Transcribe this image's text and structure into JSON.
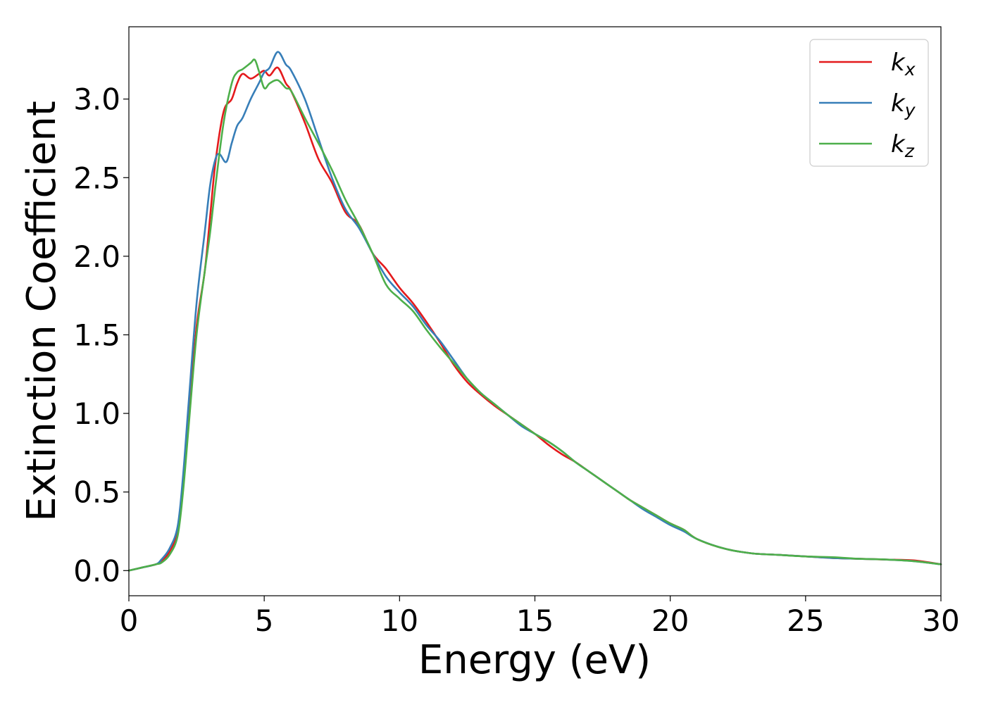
{
  "chart_data": {
    "type": "line",
    "title": "",
    "xlabel": "Energy (eV)",
    "ylabel": "Extinction Coefficient",
    "xlim": [
      0,
      30
    ],
    "ylim": [
      -0.16,
      3.46
    ],
    "xticks": [
      0,
      5,
      10,
      15,
      20,
      25,
      30
    ],
    "xtick_labels": [
      "0",
      "5",
      "10",
      "15",
      "20",
      "25",
      "30"
    ],
    "yticks": [
      0.0,
      0.5,
      1.0,
      1.5,
      2.0,
      2.5,
      3.0
    ],
    "ytick_labels": [
      "0.0",
      "0.5",
      "1.0",
      "1.5",
      "2.0",
      "2.5",
      "3.0"
    ],
    "grid": false,
    "legend_position": "top-right",
    "series": [
      {
        "name": "kx",
        "name_base": "k",
        "name_sub": "x",
        "color": "#e41a1c",
        "x": [
          0,
          0.5,
          1.0,
          1.2,
          1.5,
          1.8,
          2.0,
          2.2,
          2.5,
          2.8,
          3.0,
          3.2,
          3.5,
          3.8,
          4.0,
          4.2,
          4.5,
          4.8,
          5.0,
          5.2,
          5.5,
          5.8,
          6.0,
          6.5,
          7.0,
          7.5,
          8.0,
          8.5,
          9.0,
          9.5,
          10.0,
          10.5,
          11.0,
          11.5,
          12.0,
          12.5,
          13.0,
          13.5,
          14.0,
          14.5,
          15.0,
          15.5,
          16.0,
          16.5,
          17.0,
          17.5,
          18.0,
          18.5,
          19.0,
          19.5,
          20.0,
          20.5,
          21.0,
          22.0,
          23.0,
          24.0,
          25.0,
          26.0,
          27.0,
          28.0,
          29.0,
          30.0
        ],
        "y": [
          0.0,
          0.02,
          0.04,
          0.06,
          0.12,
          0.25,
          0.55,
          0.95,
          1.55,
          1.9,
          2.25,
          2.6,
          2.92,
          3.0,
          3.1,
          3.16,
          3.13,
          3.16,
          3.18,
          3.15,
          3.2,
          3.1,
          3.05,
          2.85,
          2.62,
          2.47,
          2.28,
          2.2,
          2.02,
          1.92,
          1.8,
          1.7,
          1.58,
          1.45,
          1.31,
          1.2,
          1.12,
          1.05,
          0.99,
          0.93,
          0.87,
          0.8,
          0.74,
          0.69,
          0.63,
          0.57,
          0.51,
          0.45,
          0.4,
          0.35,
          0.3,
          0.26,
          0.2,
          0.14,
          0.11,
          0.1,
          0.09,
          0.08,
          0.075,
          0.07,
          0.065,
          0.04
        ]
      },
      {
        "name": "ky",
        "name_base": "k",
        "name_sub": "y",
        "color": "#377eb8",
        "x": [
          0,
          0.5,
          1.0,
          1.2,
          1.5,
          1.8,
          2.0,
          2.2,
          2.5,
          2.8,
          3.0,
          3.2,
          3.35,
          3.6,
          3.8,
          4.0,
          4.2,
          4.5,
          4.8,
          5.0,
          5.2,
          5.5,
          5.8,
          6.0,
          6.5,
          7.0,
          7.5,
          8.0,
          8.5,
          9.0,
          9.5,
          10.0,
          10.5,
          11.0,
          11.5,
          12.0,
          12.5,
          13.0,
          13.5,
          14.0,
          14.5,
          15.0,
          15.5,
          16.0,
          16.5,
          17.0,
          17.5,
          18.0,
          18.5,
          19.0,
          19.5,
          20.0,
          20.5,
          21.0,
          22.0,
          23.0,
          24.0,
          25.0,
          26.0,
          27.0,
          28.0,
          29.0,
          30.0
        ],
        "y": [
          0.0,
          0.02,
          0.04,
          0.07,
          0.14,
          0.28,
          0.6,
          1.05,
          1.7,
          2.15,
          2.45,
          2.62,
          2.65,
          2.6,
          2.72,
          2.83,
          2.88,
          3.0,
          3.1,
          3.17,
          3.2,
          3.3,
          3.22,
          3.18,
          3.0,
          2.75,
          2.5,
          2.3,
          2.18,
          2.02,
          1.87,
          1.77,
          1.68,
          1.56,
          1.46,
          1.34,
          1.22,
          1.13,
          1.06,
          0.99,
          0.92,
          0.87,
          0.82,
          0.76,
          0.69,
          0.63,
          0.57,
          0.51,
          0.45,
          0.39,
          0.34,
          0.29,
          0.25,
          0.2,
          0.14,
          0.11,
          0.1,
          0.09,
          0.08,
          0.075,
          0.07,
          0.06,
          0.04
        ]
      },
      {
        "name": "kz",
        "name_base": "k",
        "name_sub": "z",
        "color": "#4daf4a",
        "x": [
          0,
          0.5,
          1.0,
          1.2,
          1.5,
          1.8,
          2.0,
          2.2,
          2.5,
          2.8,
          3.0,
          3.2,
          3.5,
          3.8,
          4.0,
          4.2,
          4.5,
          4.65,
          4.8,
          5.0,
          5.2,
          5.5,
          5.8,
          6.0,
          6.5,
          7.0,
          7.5,
          8.0,
          8.5,
          9.0,
          9.5,
          10.0,
          10.5,
          11.0,
          11.5,
          12.0,
          12.5,
          13.0,
          13.5,
          14.0,
          14.5,
          15.0,
          15.5,
          16.0,
          16.5,
          17.0,
          17.5,
          18.0,
          18.5,
          19.0,
          19.5,
          20.0,
          20.5,
          21.0,
          22.0,
          23.0,
          24.0,
          25.0,
          26.0,
          27.0,
          28.0,
          29.0,
          30.0
        ],
        "y": [
          0.0,
          0.02,
          0.04,
          0.05,
          0.1,
          0.22,
          0.5,
          0.9,
          1.5,
          1.9,
          2.15,
          2.45,
          2.85,
          3.1,
          3.17,
          3.19,
          3.23,
          3.25,
          3.18,
          3.07,
          3.1,
          3.12,
          3.07,
          3.05,
          2.88,
          2.72,
          2.55,
          2.36,
          2.2,
          2.02,
          1.82,
          1.73,
          1.65,
          1.53,
          1.42,
          1.32,
          1.22,
          1.13,
          1.06,
          0.99,
          0.93,
          0.87,
          0.82,
          0.76,
          0.69,
          0.63,
          0.57,
          0.51,
          0.45,
          0.4,
          0.35,
          0.3,
          0.26,
          0.2,
          0.14,
          0.11,
          0.1,
          0.09,
          0.085,
          0.075,
          0.07,
          0.06,
          0.04
        ]
      }
    ]
  }
}
